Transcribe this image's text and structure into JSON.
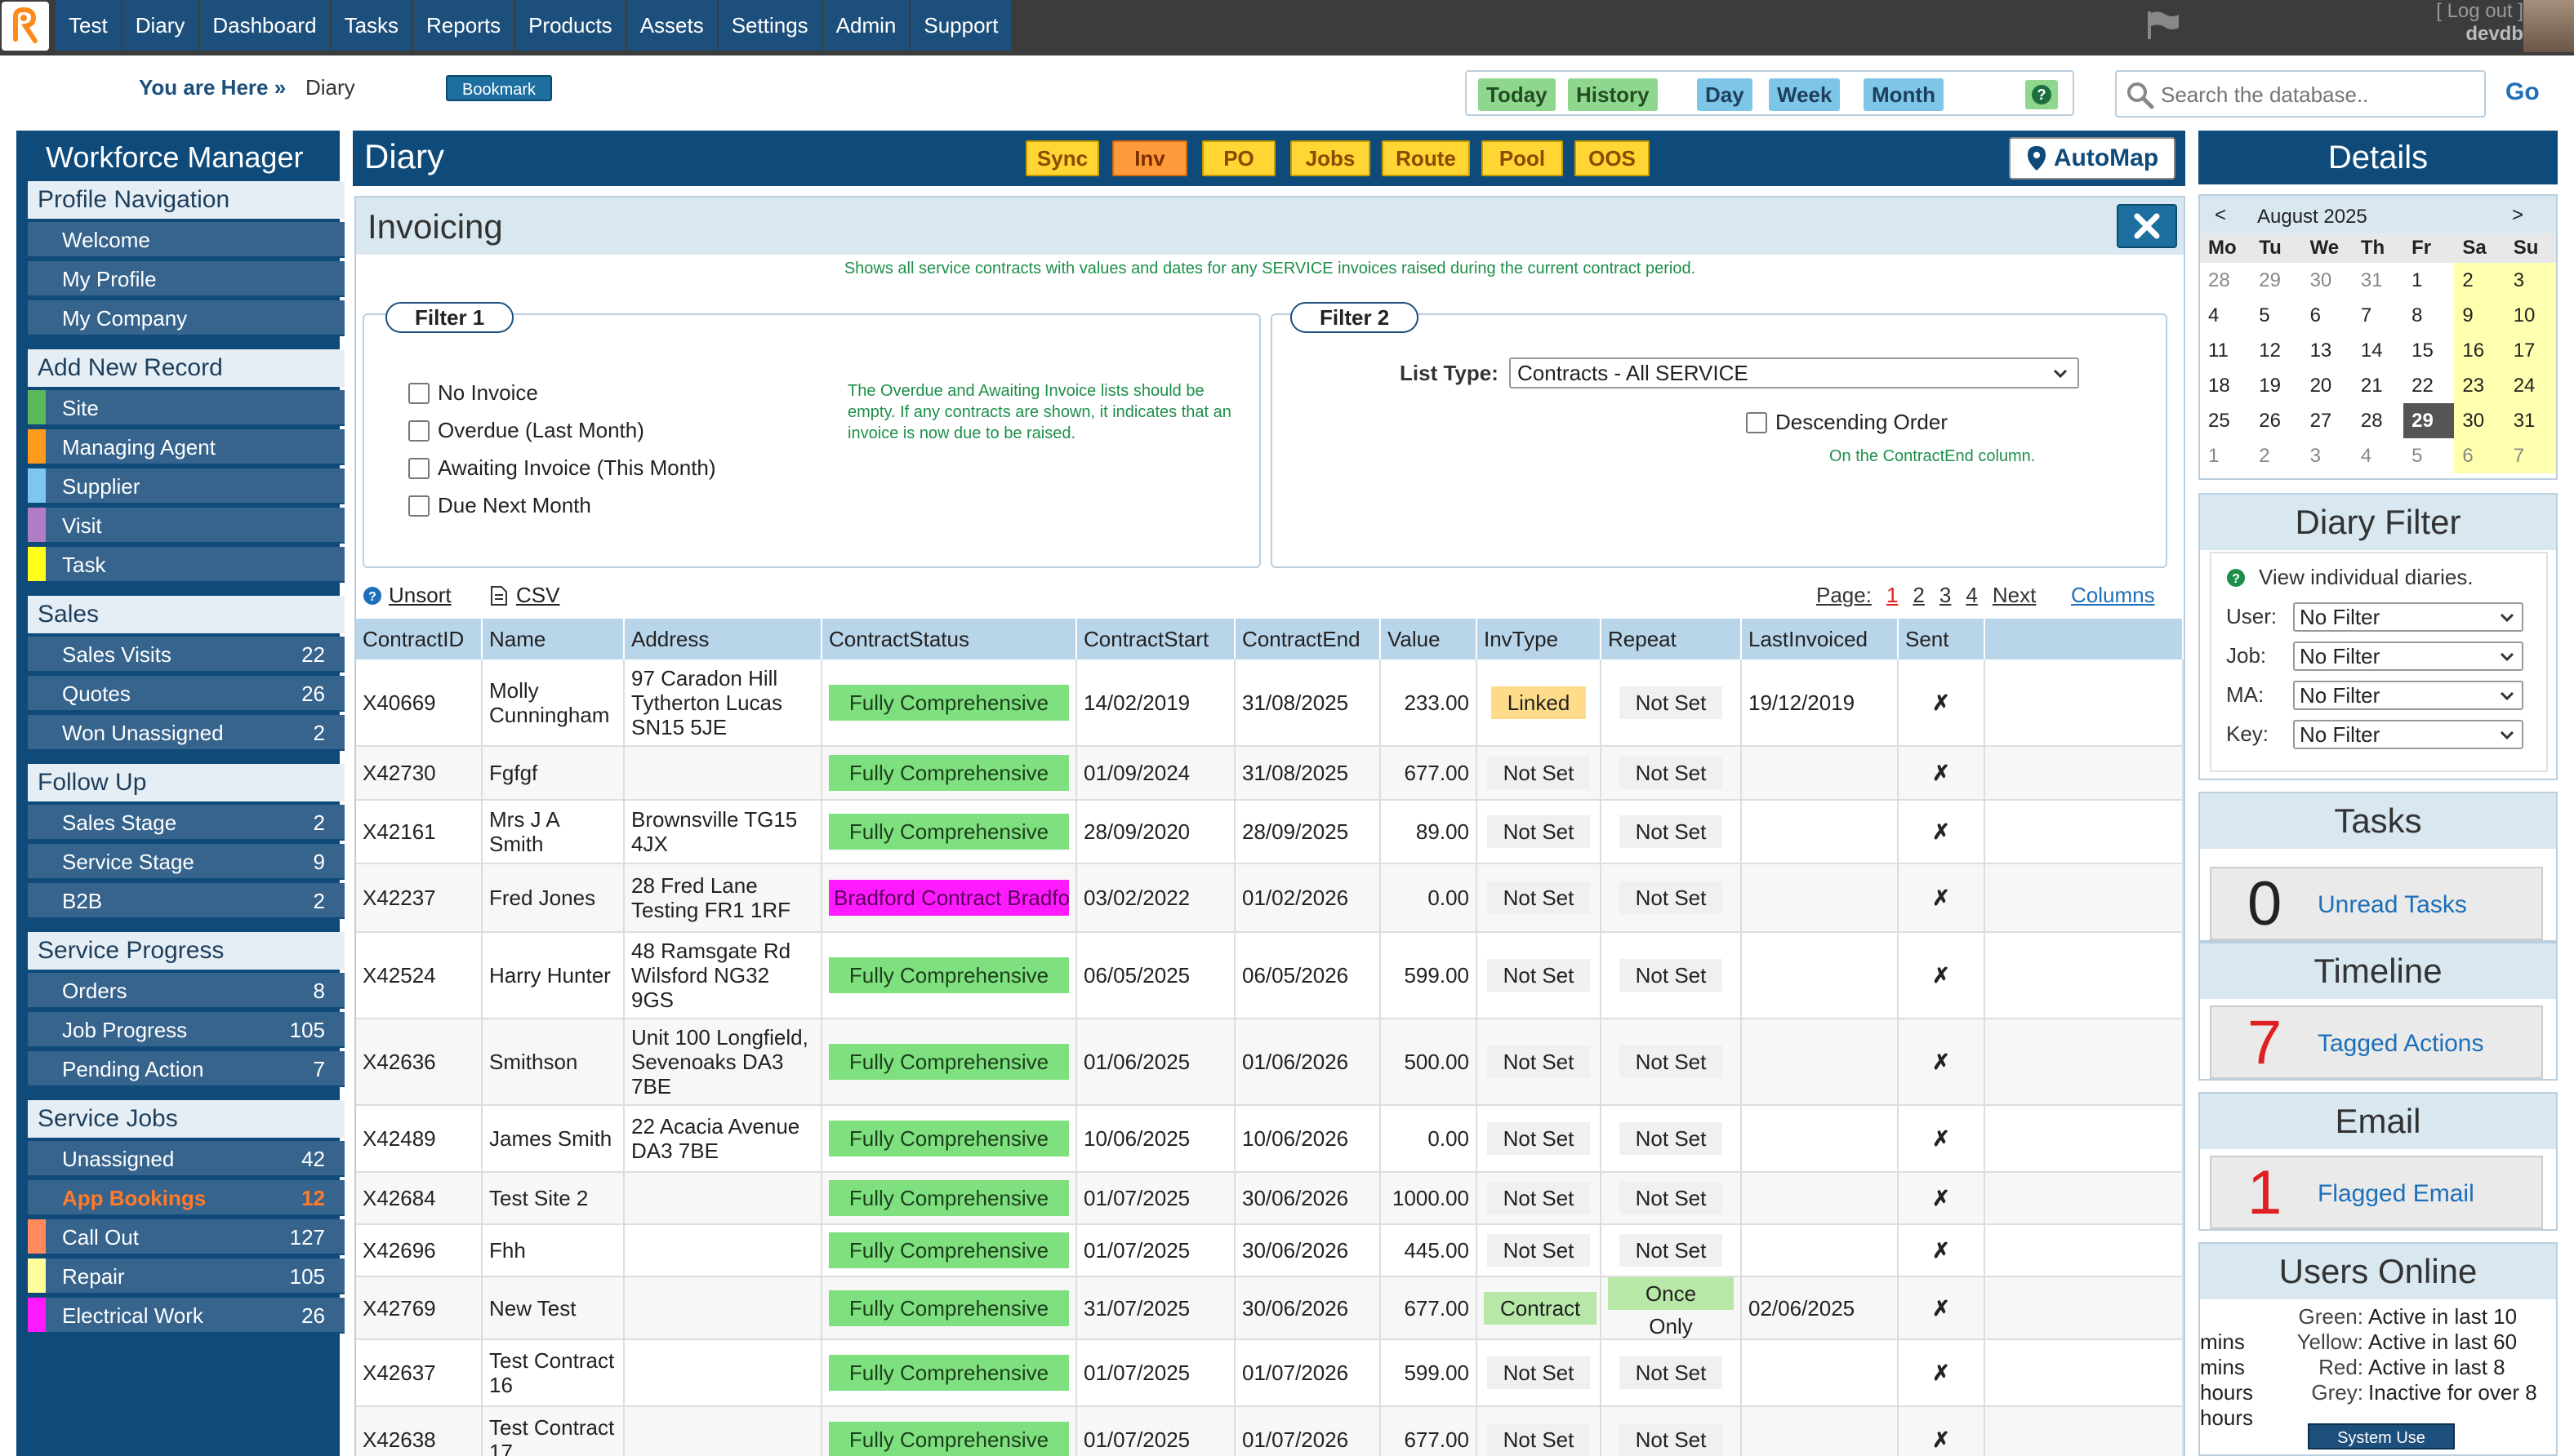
{
  "topnav": [
    "Test",
    "Diary",
    "Dashboard",
    "Tasks",
    "Reports",
    "Products",
    "Assets",
    "Settings",
    "Admin",
    "Support"
  ],
  "user": {
    "logout": "[ Log out ]",
    "name": "devdb"
  },
  "breadcrumb": {
    "label": "You are Here »",
    "current": "Diary",
    "bookmark": "Bookmark"
  },
  "views": {
    "today": "Today",
    "history": "History",
    "day": "Day",
    "week": "Week",
    "month": "Month",
    "help": "?"
  },
  "search": {
    "placeholder": "Search the database..",
    "go": "Go"
  },
  "sidebar": {
    "title": "Workforce Manager",
    "profile": {
      "title": "Profile Navigation",
      "items": [
        "Welcome",
        "My Profile",
        "My Company"
      ]
    },
    "add_new": {
      "title": "Add New Record",
      "items": [
        {
          "label": "Site",
          "color": "#5cb85c"
        },
        {
          "label": "Managing Agent",
          "color": "#ff9a1a"
        },
        {
          "label": "Supplier",
          "color": "#7dc6f0"
        },
        {
          "label": "Visit",
          "color": "#b07cc6"
        },
        {
          "label": "Task",
          "color": "#ffff1a"
        }
      ]
    },
    "sales": {
      "title": "Sales",
      "items": [
        {
          "label": "Sales Visits",
          "count": "22"
        },
        {
          "label": "Quotes",
          "count": "26"
        },
        {
          "label": "Won Unassigned",
          "count": "2"
        }
      ]
    },
    "follow_up": {
      "title": "Follow Up",
      "items": [
        {
          "label": "Sales Stage",
          "count": "2"
        },
        {
          "label": "Service Stage",
          "count": "9"
        },
        {
          "label": "B2B",
          "count": "2"
        }
      ]
    },
    "service_progress": {
      "title": "Service Progress",
      "items": [
        {
          "label": "Orders",
          "count": "8"
        },
        {
          "label": "Job Progress",
          "count": "105"
        },
        {
          "label": "Pending Action",
          "count": "7"
        }
      ]
    },
    "service_jobs": {
      "title": "Service Jobs",
      "items": [
        {
          "label": "Unassigned",
          "count": "42",
          "color": ""
        },
        {
          "label": "App Bookings",
          "count": "12",
          "color": ""
        },
        {
          "label": "Call Out",
          "count": "127",
          "color": "#ff8a5c"
        },
        {
          "label": "Repair",
          "count": "105",
          "color": "#ffff9a"
        },
        {
          "label": "Electrical Work",
          "count": "26",
          "color": "#ff1aff"
        }
      ]
    }
  },
  "diary": {
    "title": "Diary",
    "buttons": [
      "Sync",
      "Inv",
      "PO",
      "Jobs",
      "Route",
      "Pool",
      "OOS"
    ],
    "automap": "AutoMap"
  },
  "invoicing": {
    "title": "Invoicing",
    "description": "Shows all service contracts with values and dates for any SERVICE invoices raised during the current contract period.",
    "filter1": {
      "label": "Filter 1",
      "options": [
        "No Invoice",
        "Overdue (Last Month)",
        "Awaiting Invoice (This Month)",
        "Due Next Month"
      ],
      "note": "The Overdue and Awaiting Invoice lists should be empty. If any contracts are shown, it indicates that an invoice is now due to be raised."
    },
    "filter2": {
      "label": "Filter 2",
      "list_type_label": "List Type:",
      "list_type_value": "Contracts - All SERVICE",
      "descending": "Descending Order",
      "descending_note": "On the ContractEnd column."
    },
    "tools": {
      "unsort": "Unsort",
      "csv": "CSV",
      "page_label": "Page:",
      "pages": [
        "1",
        "2",
        "3",
        "4"
      ],
      "next": "Next",
      "columns": "Columns"
    },
    "columns": [
      "ContractID",
      "Name",
      "Address",
      "ContractStatus",
      "ContractStart",
      "ContractEnd",
      "Value",
      "InvType",
      "Repeat",
      "LastInvoiced",
      "Sent"
    ],
    "rows": [
      {
        "id": "X40669",
        "name": "Molly Cunningham",
        "address": "97 Caradon Hill Tytherton Lucas SN15 5JE",
        "status": "Fully Comprehensive",
        "start": "14/02/2019",
        "end": "31/08/2025",
        "value": "233.00",
        "invtype": "Linked",
        "repeat": "Not Set",
        "last": "19/12/2019",
        "sent": "✗"
      },
      {
        "id": "X42730",
        "name": "Fgfgf",
        "address": "",
        "status": "Fully Comprehensive",
        "start": "01/09/2024",
        "end": "31/08/2025",
        "value": "677.00",
        "invtype": "Not Set",
        "repeat": "Not Set",
        "last": "",
        "sent": "✗"
      },
      {
        "id": "X42161",
        "name": "Mrs J A Smith",
        "address": "Brownsville TG15 4JX",
        "status": "Fully Comprehensive",
        "start": "28/09/2020",
        "end": "28/09/2025",
        "value": "89.00",
        "invtype": "Not Set",
        "repeat": "Not Set",
        "last": "",
        "sent": "✗"
      },
      {
        "id": "X42237",
        "name": "Fred Jones",
        "address": "28 Fred Lane Testing FR1 1RF",
        "status": "Bradford Contract Bradfo",
        "start": "03/02/2022",
        "end": "01/02/2026",
        "value": "0.00",
        "invtype": "Not Set",
        "repeat": "Not Set",
        "last": "",
        "sent": "✗"
      },
      {
        "id": "X42524",
        "name": "Harry Hunter",
        "address": "48 Ramsgate Rd Wilsford NG32 9GS",
        "status": "Fully Comprehensive",
        "start": "06/05/2025",
        "end": "06/05/2026",
        "value": "599.00",
        "invtype": "Not Set",
        "repeat": "Not Set",
        "last": "",
        "sent": "✗"
      },
      {
        "id": "X42636",
        "name": "Smithson",
        "address": "Unit 100 Longfield, Sevenoaks DA3 7BE",
        "status": "Fully Comprehensive",
        "start": "01/06/2025",
        "end": "01/06/2026",
        "value": "500.00",
        "invtype": "Not Set",
        "repeat": "Not Set",
        "last": "",
        "sent": "✗"
      },
      {
        "id": "X42489",
        "name": "James Smith",
        "address": "22 Acacia Avenue DA3 7BE",
        "status": "Fully Comprehensive",
        "start": "10/06/2025",
        "end": "10/06/2026",
        "value": "0.00",
        "invtype": "Not Set",
        "repeat": "Not Set",
        "last": "",
        "sent": "✗"
      },
      {
        "id": "X42684",
        "name": "Test Site 2",
        "address": "",
        "status": "Fully Comprehensive",
        "start": "01/07/2025",
        "end": "30/06/2026",
        "value": "1000.00",
        "invtype": "Not Set",
        "repeat": "Not Set",
        "last": "",
        "sent": "✗"
      },
      {
        "id": "X42696",
        "name": "Fhh",
        "address": "",
        "status": "Fully Comprehensive",
        "start": "01/07/2025",
        "end": "30/06/2026",
        "value": "445.00",
        "invtype": "Not Set",
        "repeat": "Not Set",
        "last": "",
        "sent": "✗"
      },
      {
        "id": "X42769",
        "name": "New Test",
        "address": "",
        "status": "Fully Comprehensive",
        "start": "31/07/2025",
        "end": "30/06/2026",
        "value": "677.00",
        "invtype": "Contract",
        "repeat": "Once Only",
        "last": "02/06/2025",
        "sent": "✗"
      },
      {
        "id": "X42637",
        "name": "Test Contract 16",
        "address": "",
        "status": "Fully Comprehensive",
        "start": "01/07/2025",
        "end": "01/07/2026",
        "value": "599.00",
        "invtype": "Not Set",
        "repeat": "Not Set",
        "last": "",
        "sent": "✗"
      },
      {
        "id": "X42638",
        "name": "Test Contract 17",
        "address": "",
        "status": "Fully Comprehensive",
        "start": "01/07/2025",
        "end": "01/07/2026",
        "value": "677.00",
        "invtype": "Not Set",
        "repeat": "Not Set",
        "last": "",
        "sent": "✗"
      }
    ]
  },
  "details": {
    "title": "Details",
    "calendar": {
      "month": "August 2025",
      "prev": "<",
      "next": ">",
      "dow": [
        "Mo",
        "Tu",
        "We",
        "Th",
        "Fr",
        "Sa",
        "Su"
      ],
      "weeks": [
        [
          "28",
          "29",
          "30",
          "31",
          "1",
          "2",
          "3"
        ],
        [
          "4",
          "5",
          "6",
          "7",
          "8",
          "9",
          "10"
        ],
        [
          "11",
          "12",
          "13",
          "14",
          "15",
          "16",
          "17"
        ],
        [
          "18",
          "19",
          "20",
          "21",
          "22",
          "23",
          "24"
        ],
        [
          "25",
          "26",
          "27",
          "28",
          "29",
          "30",
          "31"
        ],
        [
          "1",
          "2",
          "3",
          "4",
          "5",
          "6",
          "7"
        ]
      ],
      "today": "29"
    },
    "diary_filter": {
      "title": "Diary Filter",
      "hint": "View individual diaries.",
      "fields": [
        {
          "label": "User:",
          "value": "No Filter"
        },
        {
          "label": "Job:",
          "value": "No Filter"
        },
        {
          "label": "MA:",
          "value": "No Filter"
        },
        {
          "label": "Key:",
          "value": "No Filter"
        }
      ]
    },
    "tasks": {
      "title": "Tasks",
      "count": "0",
      "label": "Unread Tasks"
    },
    "timeline": {
      "title": "Timeline",
      "count": "7",
      "label": "Tagged Actions"
    },
    "email": {
      "title": "Email",
      "count": "1",
      "label": "Flagged Email"
    },
    "users_online": {
      "title": "Users Online",
      "legend": [
        {
          "k": "Green:",
          "v": "Active in last 10 mins"
        },
        {
          "k": "Yellow:",
          "v": "Active in last 60 mins"
        },
        {
          "k": "Red:",
          "v": "Active in last 8 hours"
        },
        {
          "k": "Grey:",
          "v": "Inactive for over 8 hours"
        }
      ],
      "system_use": "System Use"
    }
  }
}
